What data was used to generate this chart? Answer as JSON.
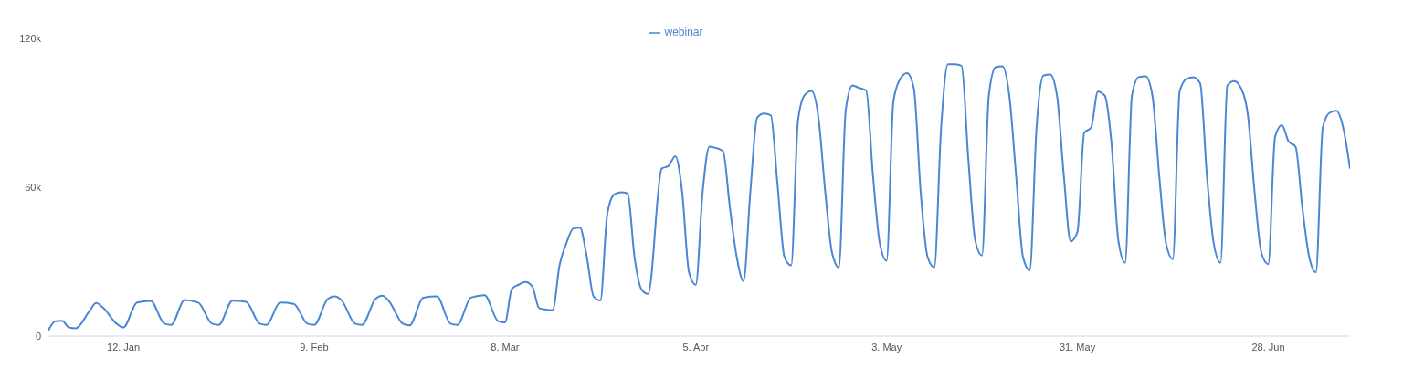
{
  "chart_data": {
    "type": "line",
    "legend": "top",
    "grid": false,
    "marker": "none",
    "line_style": "solid",
    "x": [
      "--01-01",
      "--01-02",
      "--01-03",
      "--01-04",
      "--01-05",
      "--01-07",
      "--01-08",
      "--01-09",
      "--01-11",
      "--01-12",
      "--01-14",
      "--01-16",
      "--01-18",
      "--01-19",
      "--01-21",
      "--01-23",
      "--01-25",
      "--01-26",
      "--01-28",
      "--01-30",
      "--02-01",
      "--02-02",
      "--02-04",
      "--02-06",
      "--02-08",
      "--02-09",
      "--02-11",
      "--02-12",
      "--02-13",
      "--02-15",
      "--02-16",
      "--02-18",
      "--02-19",
      "--02-20",
      "--02-22",
      "--02-23",
      "--02-25",
      "--02-27",
      "--02-29",
      "--03-01",
      "--03-03",
      "--03-05",
      "--03-07",
      "--03-08",
      "--03-09",
      "--03-10",
      "--03-11",
      "--03-12",
      "--03-13",
      "--03-14",
      "--03-15",
      "--03-16",
      "--03-17",
      "--03-18",
      "--03-19",
      "--03-20",
      "--03-21",
      "--03-22",
      "--03-23",
      "--03-24",
      "--03-25",
      "--03-26",
      "--03-27",
      "--03-28",
      "--03-29",
      "--03-31",
      "--04-01",
      "--04-02",
      "--04-03",
      "--04-04",
      "--04-05",
      "--04-06",
      "--04-07",
      "--04-08",
      "--04-09",
      "--04-10",
      "--04-11",
      "--04-12",
      "--04-13",
      "--04-14",
      "--04-15",
      "--04-16",
      "--04-17",
      "--04-18",
      "--04-19",
      "--04-20",
      "--04-21",
      "--04-22",
      "--04-23",
      "--04-24",
      "--04-25",
      "--04-26",
      "--04-27",
      "--04-28",
      "--04-29",
      "--04-30",
      "--05-01",
      "--05-02",
      "--05-03",
      "--05-04",
      "--05-05",
      "--05-06",
      "--05-07",
      "--05-08",
      "--05-09",
      "--05-10",
      "--05-11",
      "--05-12",
      "--05-13",
      "--05-14",
      "--05-15",
      "--05-16",
      "--05-17",
      "--05-18",
      "--05-19",
      "--05-20",
      "--05-21",
      "--05-22",
      "--05-23",
      "--05-24",
      "--05-25",
      "--05-26",
      "--05-27",
      "--05-28",
      "--05-29",
      "--05-30",
      "--05-31",
      "--06-01",
      "--06-02",
      "--06-03",
      "--06-04",
      "--06-05",
      "--06-06",
      "--06-07",
      "--06-08",
      "--06-09",
      "--06-10",
      "--06-11",
      "--06-12",
      "--06-13",
      "--06-14",
      "--06-15",
      "--06-16",
      "--06-17",
      "--06-18",
      "--06-19",
      "--06-20",
      "--06-21",
      "--06-22",
      "--06-23",
      "--06-24",
      "--06-25",
      "--06-26",
      "--06-27",
      "--06-28",
      "--06-29",
      "--06-30",
      "--07-01",
      "--07-02",
      "--07-03",
      "--07-04",
      "--07-05",
      "--07-06",
      "--07-07",
      "--07-08",
      "--07-09",
      "--07-10"
    ],
    "series": [
      {
        "name": "webinar",
        "color": "#4a86d4",
        "values": [
          2300,
          6000,
          6200,
          3500,
          3100,
          10000,
          13300,
          11500,
          5000,
          3500,
          13500,
          14200,
          5000,
          4500,
          14500,
          13500,
          5000,
          4500,
          14300,
          13800,
          5000,
          4500,
          13500,
          13000,
          5000,
          4500,
          15000,
          16000,
          14500,
          5000,
          4500,
          15000,
          16300,
          14000,
          5000,
          4300,
          15500,
          16000,
          5000,
          4500,
          15500,
          16500,
          6000,
          5500,
          19000,
          20700,
          21800,
          20000,
          11300,
          10700,
          10500,
          28500,
          37400,
          43300,
          43700,
          32000,
          16000,
          14400,
          49000,
          57000,
          58000,
          57500,
          32000,
          19000,
          17000,
          67500,
          68600,
          72500,
          58000,
          25700,
          20700,
          58000,
          76400,
          75800,
          74500,
          51900,
          32000,
          22200,
          58000,
          88000,
          89700,
          89000,
          60800,
          32000,
          28500,
          87000,
          97200,
          98800,
          88000,
          58000,
          33500,
          27700,
          91000,
          101000,
          100000,
          99000,
          64700,
          37400,
          30400,
          94700,
          103700,
          106000,
          99800,
          58000,
          32000,
          27700,
          84000,
          109600,
          109600,
          109000,
          71000,
          38600,
          32500,
          97000,
          108400,
          108800,
          97000,
          64700,
          32000,
          26500,
          84000,
          105000,
          105500,
          97000,
          64700,
          38200,
          42000,
          82000,
          84000,
          98600,
          97000,
          77700,
          38600,
          29600,
          97000,
          104400,
          104700,
          97000,
          64700,
          37400,
          31000,
          98600,
          103700,
          104400,
          102000,
          64700,
          37400,
          29600,
          101000,
          102800,
          100000,
          89400,
          58000,
          33500,
          29000,
          80300,
          85000,
          78400,
          76400,
          51900,
          32000,
          25700,
          84000,
          90000,
          90800,
          84000,
          67500
        ]
      }
    ],
    "xlim": [
      "--01-01",
      "--07-10"
    ],
    "xticks": [
      {
        "value": "--01-12",
        "label": "12. Jan"
      },
      {
        "value": "--02-09",
        "label": "9. Feb"
      },
      {
        "value": "--03-08",
        "label": "8. Mar"
      },
      {
        "value": "--04-05",
        "label": "5. Apr"
      },
      {
        "value": "--05-03",
        "label": "3. May"
      },
      {
        "value": "--05-31",
        "label": "31. May"
      },
      {
        "value": "--06-28",
        "label": "28. Jun"
      }
    ],
    "ylim": [
      0,
      120000
    ],
    "yticks": [
      {
        "value": 0,
        "label": "0"
      },
      {
        "value": 60000,
        "label": "60k"
      },
      {
        "value": 120000,
        "label": "120k"
      }
    ]
  }
}
